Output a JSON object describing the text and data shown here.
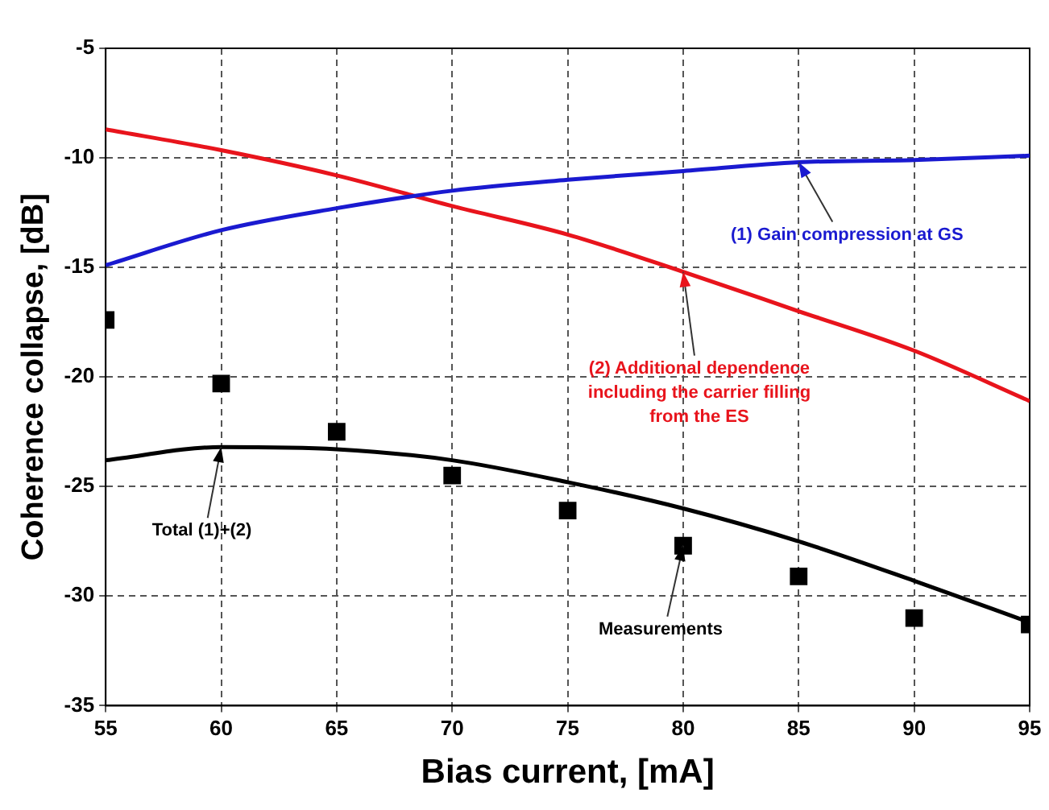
{
  "chart_data": {
    "type": "line",
    "xlabel": "Bias current, [mA]",
    "ylabel": "Coherence collapse, [dB]",
    "x": [
      55,
      60,
      65,
      70,
      75,
      80,
      85,
      90,
      95
    ],
    "xlim": [
      55,
      95
    ],
    "xticks": [
      55,
      60,
      65,
      70,
      75,
      80,
      85,
      90,
      95
    ],
    "ylim": [
      -35,
      -5
    ],
    "yticks": [
      -35,
      -30,
      -25,
      -20,
      -15,
      -10,
      -5
    ],
    "grid": true,
    "legend": false,
    "series": [
      {
        "color": "#1a1ad0",
        "values": [
          -14.9,
          -13.3,
          -12.3,
          -11.5,
          -11.0,
          -10.6,
          -10.2,
          -10.1,
          -9.9
        ]
      },
      {
        "color": "#e8141c",
        "values": [
          -8.7,
          -9.65,
          -10.8,
          -12.2,
          -13.5,
          -15.2,
          -17.0,
          -18.8,
          -21.1
        ]
      },
      {
        "color": "#000000",
        "values": [
          -23.8,
          -23.2,
          -23.3,
          -23.8,
          -24.8,
          -26.0,
          -27.5,
          -29.3,
          -31.2
        ]
      },
      {
        "type": "scatter",
        "color": "#000000",
        "marker": "square",
        "values": [
          -17.4,
          -20.3,
          -22.5,
          -24.5,
          -26.1,
          -27.7,
          -29.1,
          -31.0,
          -31.3
        ]
      }
    ],
    "annotations": [
      {
        "text": "(1) Gain compression at GS",
        "x": 85,
        "y": -10.2
      },
      {
        "text": "(2) Additional dependence\nincluding the carrier filling\nfrom the ES",
        "x": 80,
        "y": -15.2
      },
      {
        "text": "Total (1)+(2)",
        "x": 60,
        "y": -23.2
      },
      {
        "text": "Measurements",
        "x": 80,
        "y": -27.7
      }
    ]
  }
}
